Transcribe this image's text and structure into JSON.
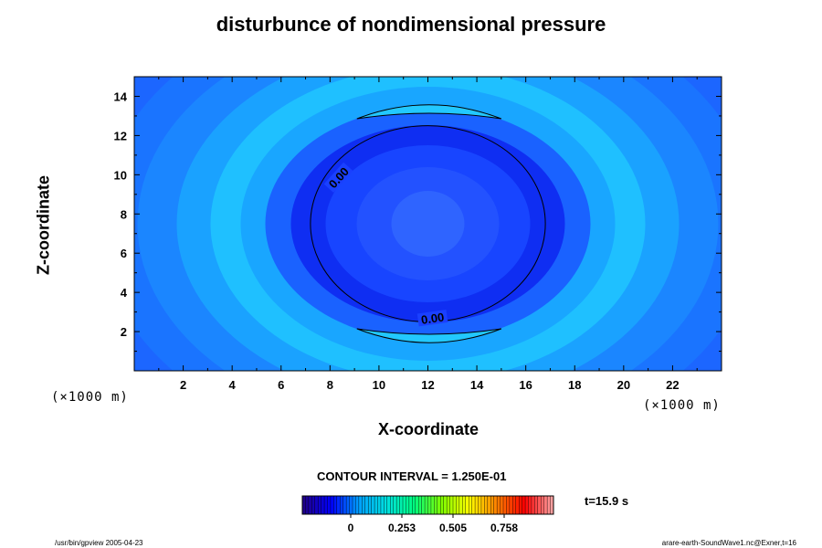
{
  "chart_data": {
    "type": "heatmap",
    "title": "disturbunce of nondimensional pressure",
    "xlabel": "X-coordinate",
    "ylabel": "Z-coordinate",
    "x_unit": "(×1000 m)",
    "y_unit": "(×1000 m)",
    "xlim": [
      0,
      24
    ],
    "ylim": [
      0,
      15
    ],
    "x_ticks": [
      "2",
      "4",
      "6",
      "8",
      "10",
      "12",
      "14",
      "16",
      "18",
      "20",
      "22"
    ],
    "y_ticks": [
      "2",
      "4",
      "6",
      "8",
      "10",
      "12",
      "14"
    ],
    "x_tick_values": [
      2,
      4,
      6,
      8,
      10,
      12,
      14,
      16,
      18,
      20,
      22
    ],
    "y_tick_values": [
      2,
      4,
      6,
      8,
      10,
      12,
      14
    ],
    "field": {
      "center": [
        12,
        7.5
      ],
      "description_rings": [
        {
          "r_km": 0.0,
          "level": 0.16
        },
        {
          "r_km": 2.5,
          "level": 0.13
        },
        {
          "r_km": 4.2,
          "level": 0.1
        },
        {
          "r_km": 5.0,
          "level": 0.14
        },
        {
          "r_km": 6.0,
          "level": 0.22
        },
        {
          "r_km": 7.4,
          "level": 0.18
        },
        {
          "r_km": 9.0,
          "level": 0.14
        },
        {
          "r_km": 11.0,
          "level": 0.12
        }
      ]
    },
    "contour_lines": [
      {
        "label": "0.00",
        "shape": "ellipse",
        "cx": 12,
        "cz": 7.5,
        "rx": 4.8,
        "rz": 5.0
      },
      {
        "label": "",
        "shape": "crescent-top",
        "x_range": [
          9.1,
          15.0
        ],
        "z_range": [
          12.8,
          13.9
        ]
      },
      {
        "label": "",
        "shape": "crescent-bottom",
        "x_range": [
          9.1,
          15.0
        ],
        "z_range": [
          1.1,
          2.2
        ]
      }
    ],
    "contour_labels": [
      "0.00",
      "0.00"
    ],
    "contour_interval": "CONTOUR INTERVAL = 1.250E-01",
    "colorbar": {
      "min": 0,
      "max": 1.01,
      "ticks": [
        "0",
        "0.253",
        "0.505",
        "0.758"
      ],
      "tick_values": [
        0,
        0.253,
        0.505,
        0.758
      ]
    },
    "time_label": "t=15.9 s",
    "grid": false,
    "colormap": [
      "#20008a",
      "#0000ff",
      "#00a0ff",
      "#00e0e0",
      "#00ff80",
      "#80ff00",
      "#ffff00",
      "#ff8000",
      "#ff0000",
      "#ffa0a0"
    ]
  },
  "footer": {
    "left": "/usr/bin/gpview 2005-04-23",
    "right": "arare-earth-SoundWave1.nc@Exner,t=16"
  }
}
